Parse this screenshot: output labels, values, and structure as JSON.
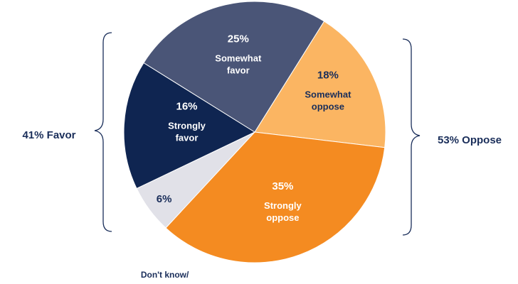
{
  "chart_data": {
    "type": "pie",
    "slices": [
      {
        "pct_label": "18%",
        "label_lines": [
          "Somewhat",
          "oppose"
        ],
        "value": 18,
        "color": "#fbb562",
        "text_color": "#1a2e5a"
      },
      {
        "pct_label": "35%",
        "label_lines": [
          "Strongly",
          "oppose"
        ],
        "value": 35,
        "color": "#f48b21",
        "text_color": "#ffffff"
      },
      {
        "pct_label": "6%",
        "label_lines": [
          "Don't know/"
        ],
        "value": 6,
        "color": "#e1e1e8",
        "text_color": "#1a2e5a"
      },
      {
        "pct_label": "16%",
        "label_lines": [
          "Strongly",
          "favor"
        ],
        "value": 16,
        "color": "#0f2551",
        "text_color": "#ffffff"
      },
      {
        "pct_label": "25%",
        "label_lines": [
          "Somewhat",
          "favor"
        ],
        "value": 25,
        "color": "#4a5577",
        "text_color": "#ffffff"
      }
    ],
    "groups": [
      {
        "label": "41% Favor",
        "side": "left"
      },
      {
        "label": "53% Oppose",
        "side": "right"
      }
    ],
    "start_angle_deg": 32
  }
}
